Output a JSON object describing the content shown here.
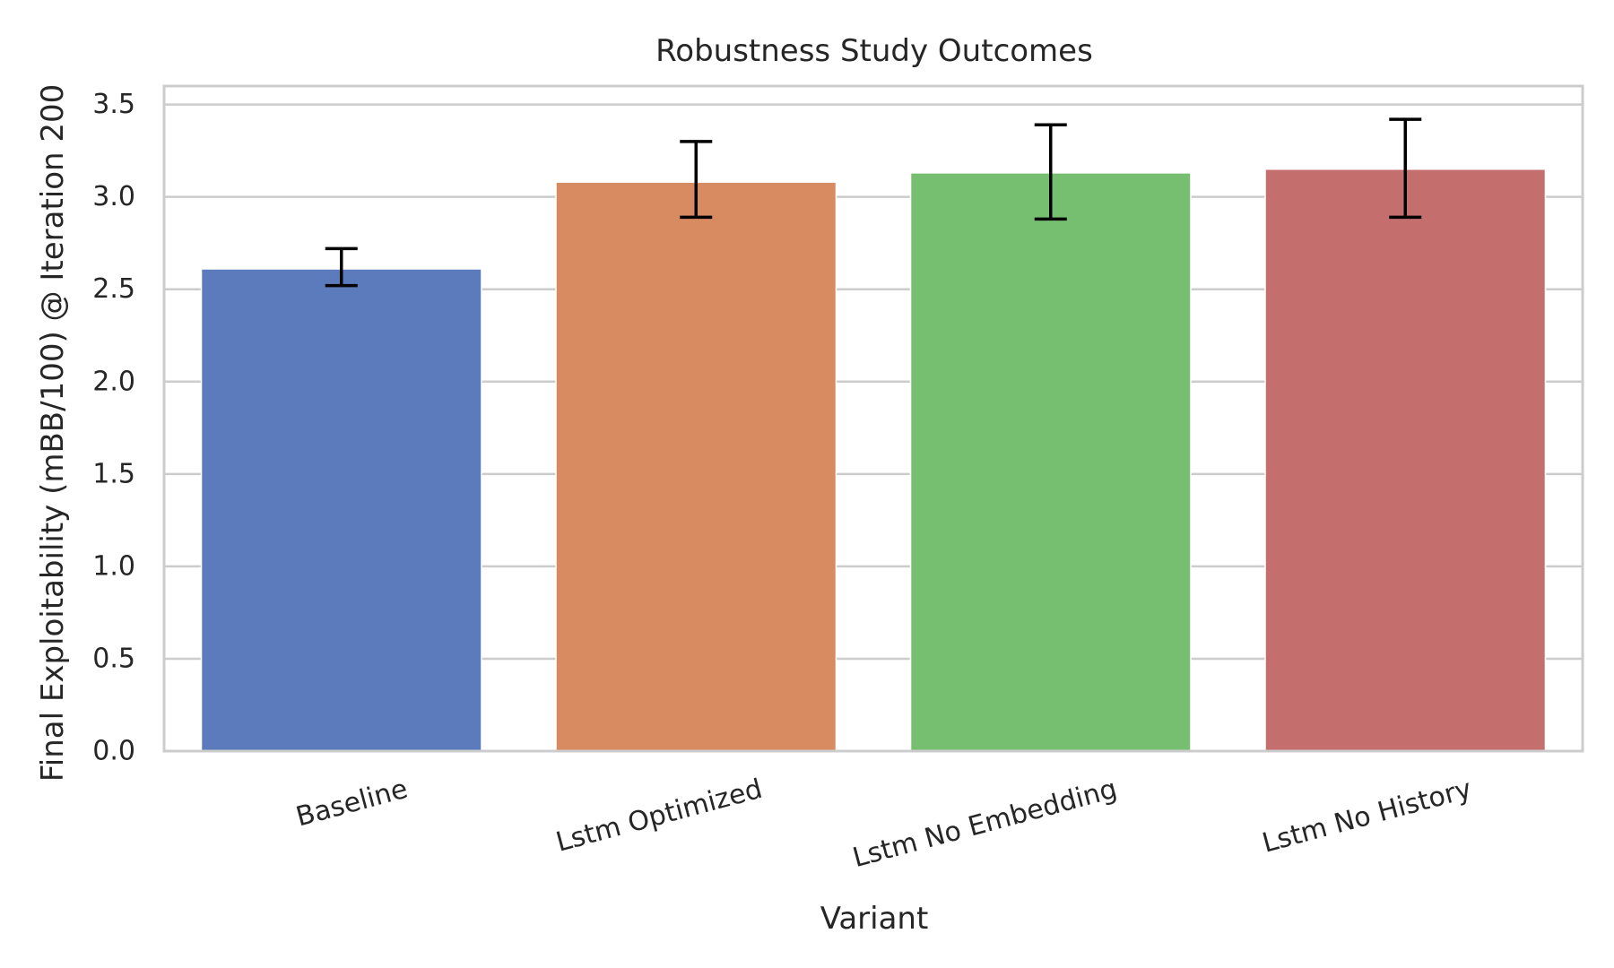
{
  "chart_data": {
    "type": "bar",
    "title": "Robustness Study Outcomes",
    "xlabel": "Variant",
    "ylabel": "Final Exploitability (mBB/100) @ Iteration 200",
    "categories": [
      "Baseline",
      "Lstm Optimized",
      "Lstm No Embedding",
      "Lstm No History"
    ],
    "values": [
      2.61,
      3.08,
      3.13,
      3.15
    ],
    "error_low": [
      2.52,
      2.89,
      2.88,
      2.89
    ],
    "error_high": [
      2.72,
      3.3,
      3.39,
      3.42
    ],
    "colors": [
      "#5b7bbd",
      "#d88a60",
      "#76bf70",
      "#c56e6e"
    ],
    "ylim": [
      0,
      3.6
    ],
    "yticks": [
      "0.0",
      "0.5",
      "1.0",
      "1.5",
      "2.0",
      "2.5",
      "3.0",
      "3.5"
    ],
    "grid": "horizontal",
    "xtick_rotation": -15
  }
}
